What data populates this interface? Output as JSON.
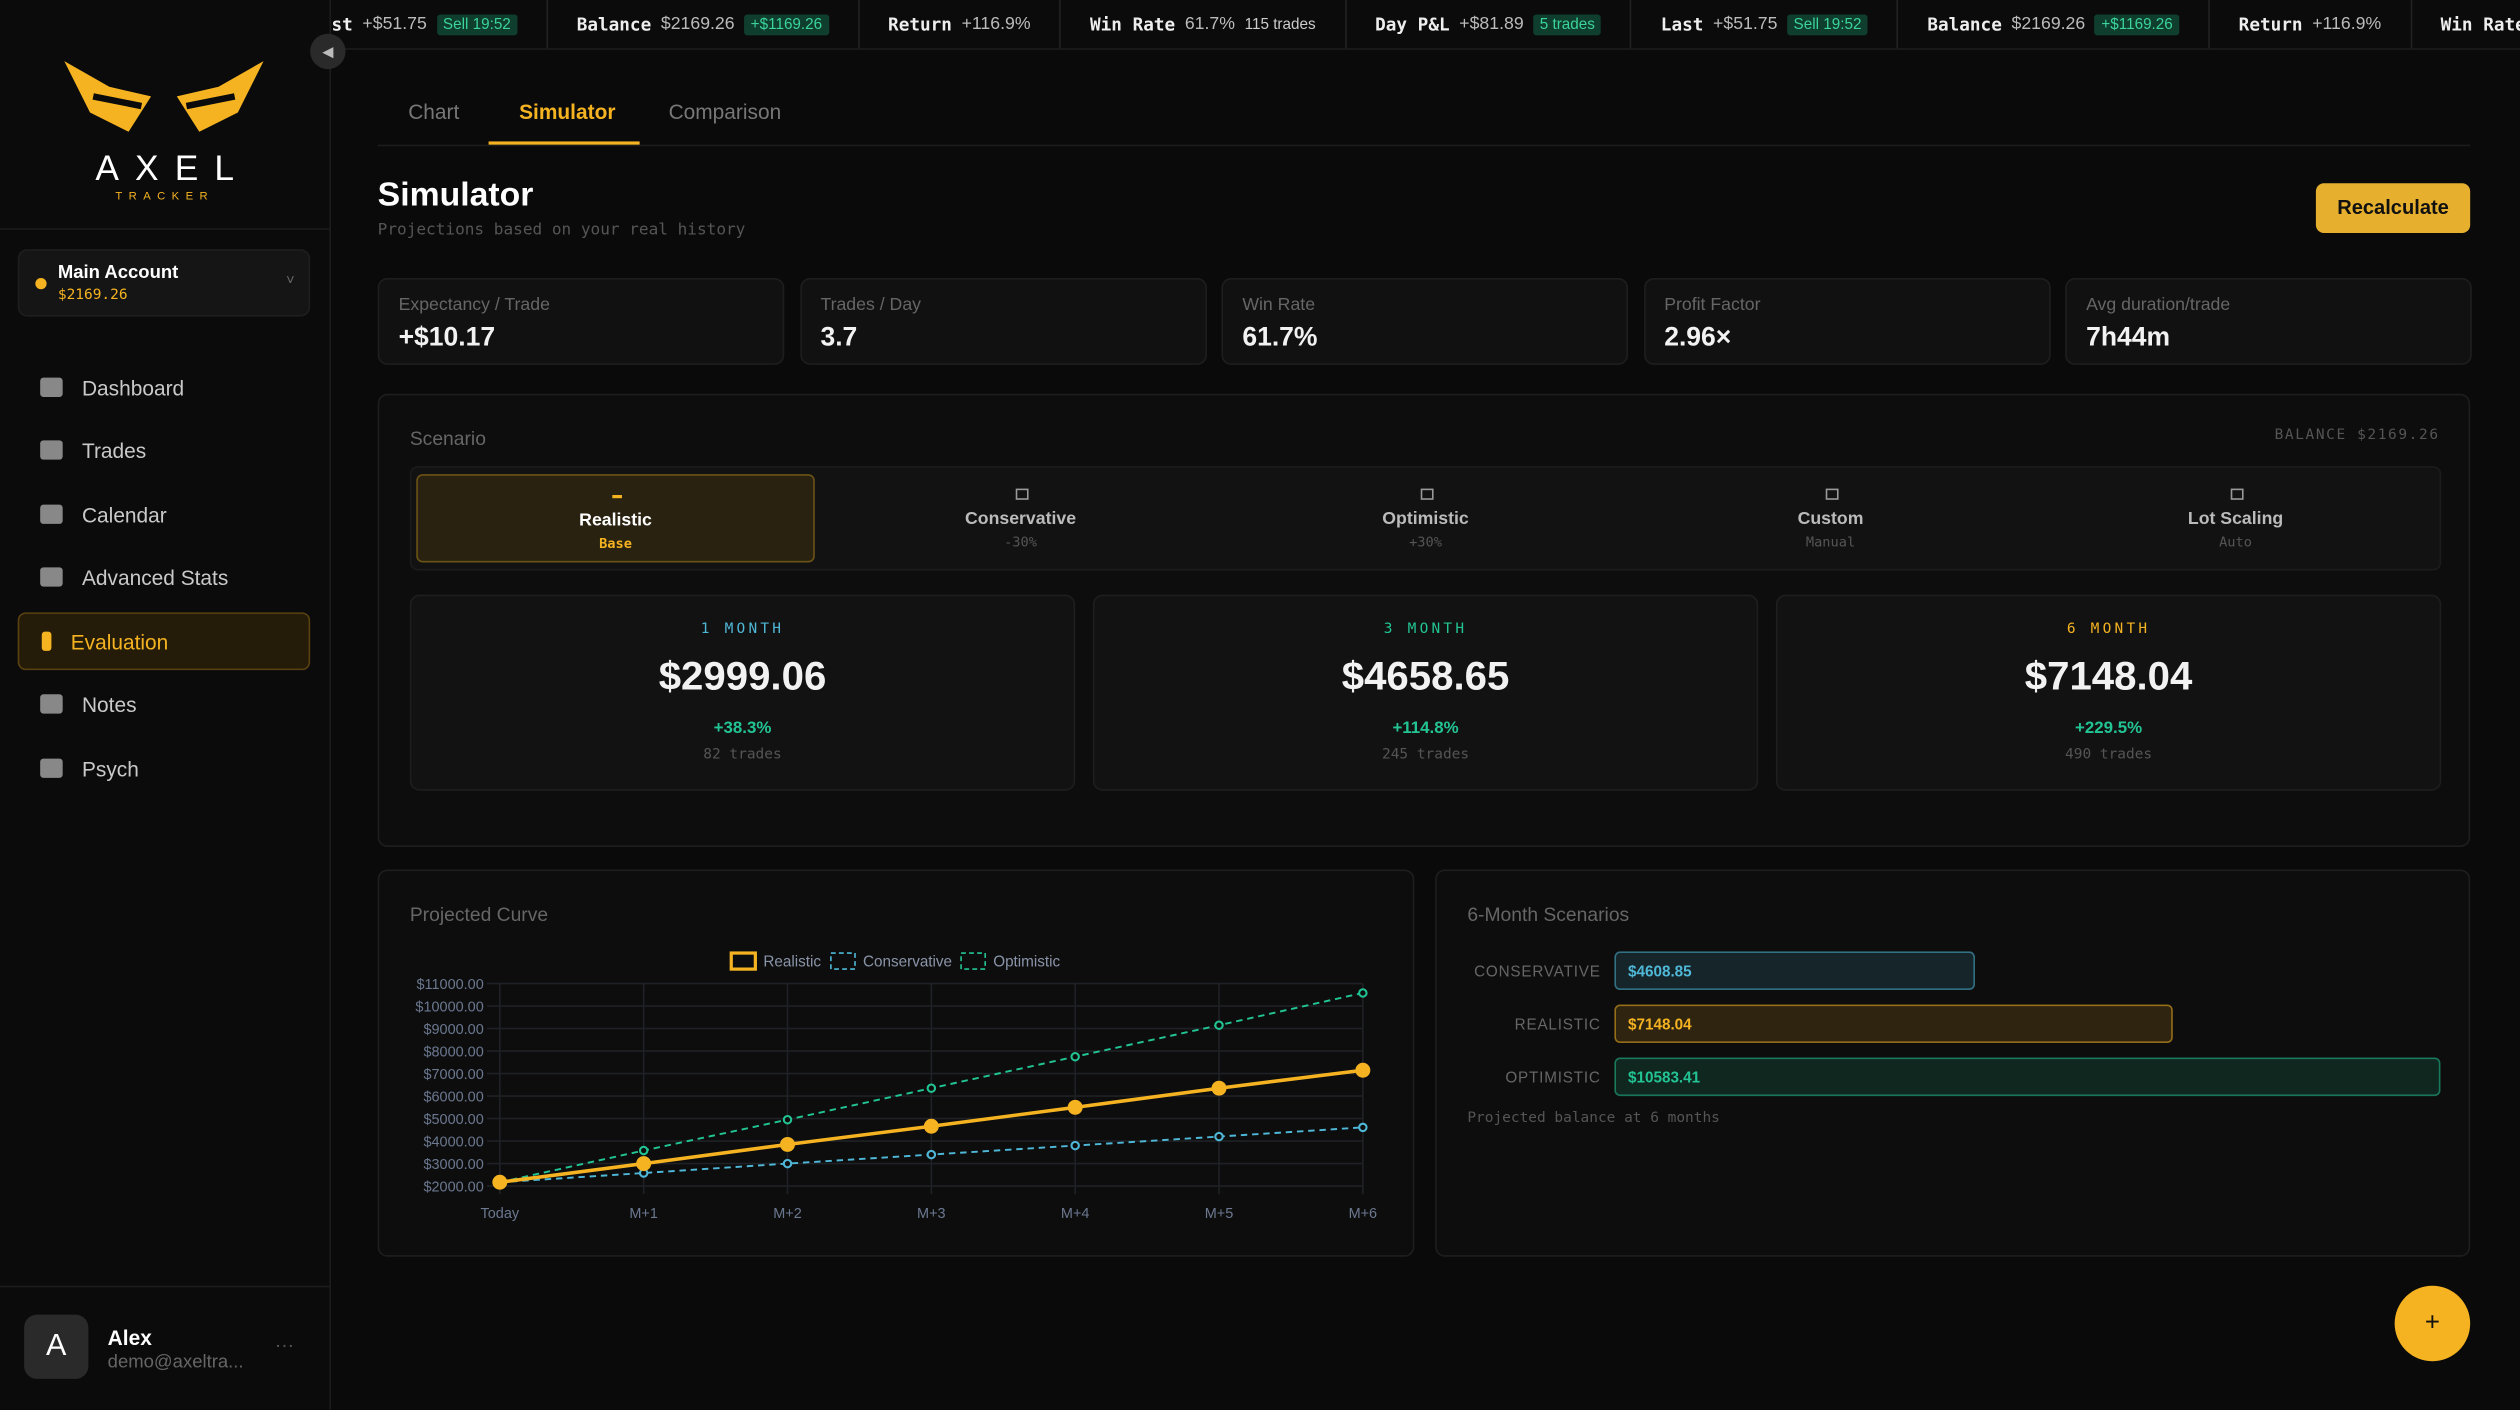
{
  "ticker": [
    {
      "label": "Last",
      "value": "+$51.75",
      "badge": "Sell 19:52"
    },
    {
      "label": "Balance",
      "value": "$2169.26",
      "badge": "+$1169.26"
    },
    {
      "label": "Return",
      "value": "+116.9%"
    },
    {
      "label": "Win Rate",
      "value": "61.7%",
      "note": "115 trades"
    },
    {
      "label": "Day P&L",
      "value": "+$81.89",
      "badge": "5 trades"
    }
  ],
  "sidebar": {
    "logo": "AXEL",
    "logo_sub": "TRACKER",
    "account": {
      "name": "Main Account",
      "balance": "$2169.26"
    },
    "nav": [
      "Dashboard",
      "Trades",
      "Calendar",
      "Advanced Stats",
      "Evaluation",
      "Notes",
      "Psych"
    ],
    "active": 4,
    "user": {
      "initial": "A",
      "name": "Alex",
      "email": "demo@axeltra..."
    }
  },
  "tabs": [
    "Chart",
    "Simulator",
    "Comparison"
  ],
  "active_tab": 1,
  "header": {
    "title": "Simulator",
    "subtitle": "Projections based on your real history",
    "button": "Recalculate"
  },
  "stats": [
    {
      "label": "Expectancy / Trade",
      "value": "+$10.17"
    },
    {
      "label": "Trades / Day",
      "value": "3.7"
    },
    {
      "label": "Win Rate",
      "value": "61.7%"
    },
    {
      "label": "Profit Factor",
      "value": "2.96×"
    },
    {
      "label": "Avg duration/trade",
      "value": "7h44m"
    }
  ],
  "scenario": {
    "title": "Scenario",
    "balance": "BALANCE $2169.26",
    "active": 0,
    "options": [
      {
        "name": "Realistic",
        "sub": "Base"
      },
      {
        "name": "Conservative",
        "sub": "-30%"
      },
      {
        "name": "Optimistic",
        "sub": "+30%"
      },
      {
        "name": "Custom",
        "sub": "Manual"
      },
      {
        "name": "Lot Scaling",
        "sub": "Auto"
      }
    ],
    "projections": [
      {
        "period": "1 MONTH",
        "amount": "$2999.06",
        "change": "+38.3%",
        "trades": "82 trades",
        "color": "#4fb8d8"
      },
      {
        "period": "3 MONTH",
        "amount": "$4658.65",
        "change": "+114.8%",
        "trades": "245 trades",
        "color": "#22c493"
      },
      {
        "period": "6 MONTH",
        "amount": "$7148.04",
        "change": "+229.5%",
        "trades": "490 trades",
        "color": "#f5b321"
      }
    ]
  },
  "projected_curve": {
    "type": "line",
    "title": "Projected Curve",
    "x": [
      "Today",
      "M+1",
      "M+2",
      "M+3",
      "M+4",
      "M+5",
      "M+6"
    ],
    "series": [
      {
        "name": "Realistic",
        "color": "#f5b321",
        "dash": false,
        "values": [
          2169.26,
          2999.06,
          3850,
          4658.65,
          5500,
          6350,
          7148.04
        ]
      },
      {
        "name": "Conservative",
        "color": "#4fb8d8",
        "dash": true,
        "values": [
          2169.26,
          2580,
          3000,
          3400,
          3800,
          4200,
          4608.85
        ]
      },
      {
        "name": "Optimistic",
        "color": "#22c493",
        "dash": true,
        "values": [
          2169.26,
          3580,
          4950,
          6350,
          7750,
          9150,
          10583.41
        ]
      }
    ],
    "ylim": [
      2000,
      11000
    ],
    "yticks": [
      {
        "value": 2000,
        "label": "$2000.00"
      },
      {
        "value": 3000,
        "label": "$3000.00"
      },
      {
        "value": 4000,
        "label": "$4000.00"
      },
      {
        "value": 5000,
        "label": "$5000.00"
      },
      {
        "value": 6000,
        "label": "$6000.00"
      },
      {
        "value": 7000,
        "label": "$7000.00"
      },
      {
        "value": 8000,
        "label": "$8000.00"
      },
      {
        "value": 9000,
        "label": "$9000.00"
      },
      {
        "value": 10000,
        "label": "$10000.00"
      },
      {
        "value": 11000,
        "label": "$11000.00"
      }
    ],
    "grid": true
  },
  "six_month": {
    "type": "bar",
    "title": "6-Month Scenarios",
    "categories": [
      "CONSERVATIVE",
      "REALISTIC",
      "OPTIMISTIC"
    ],
    "values": [
      4608.85,
      7148.04,
      10583.41
    ],
    "value_labels": [
      "$4608.85",
      "$7148.04",
      "$10583.41"
    ],
    "colors": [
      "#4fb8d8",
      "#f5b321",
      "#22c493"
    ],
    "note": "Projected balance at 6 months"
  }
}
